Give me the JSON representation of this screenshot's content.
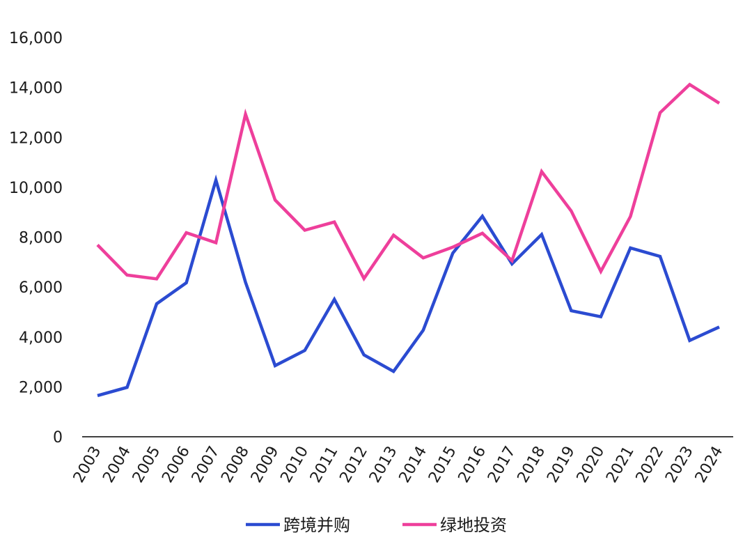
{
  "chart_data": {
    "type": "line",
    "title": "",
    "xlabel": "",
    "ylabel": "",
    "categories": [
      "2003",
      "2004",
      "2005",
      "2006",
      "2007",
      "2008",
      "2009",
      "2010",
      "2011",
      "2012",
      "2013",
      "2014",
      "2015",
      "2016",
      "2017",
      "2018",
      "2019",
      "2020",
      "2021",
      "2022",
      "2023",
      "2024"
    ],
    "ylim": [
      0,
      16000
    ],
    "yticks": [
      0,
      2000,
      4000,
      6000,
      8000,
      10000,
      12000,
      14000,
      16000
    ],
    "ytick_labels": [
      "0",
      "2,000",
      "4,000",
      "6,000",
      "8,000",
      "10,000",
      "12,000",
      "14,000",
      "16,000"
    ],
    "grid": false,
    "legend_position": "bottom",
    "series": [
      {
        "name": "跨境并购",
        "color": "#2b4bd1",
        "values": [
          1650,
          1980,
          5330,
          6170,
          10290,
          6190,
          2850,
          3460,
          5510,
          3280,
          2620,
          4270,
          7360,
          8840,
          6930,
          8110,
          5050,
          4810,
          7570,
          7230,
          3860,
          4400
        ]
      },
      {
        "name": "绿地投资",
        "color": "#ee3f9b",
        "values": [
          7690,
          6480,
          6330,
          8180,
          7780,
          12930,
          9490,
          8280,
          8610,
          6340,
          8080,
          7170,
          7600,
          8160,
          7060,
          10630,
          9050,
          6630,
          8830,
          12990,
          14120,
          13370
        ]
      }
    ]
  }
}
